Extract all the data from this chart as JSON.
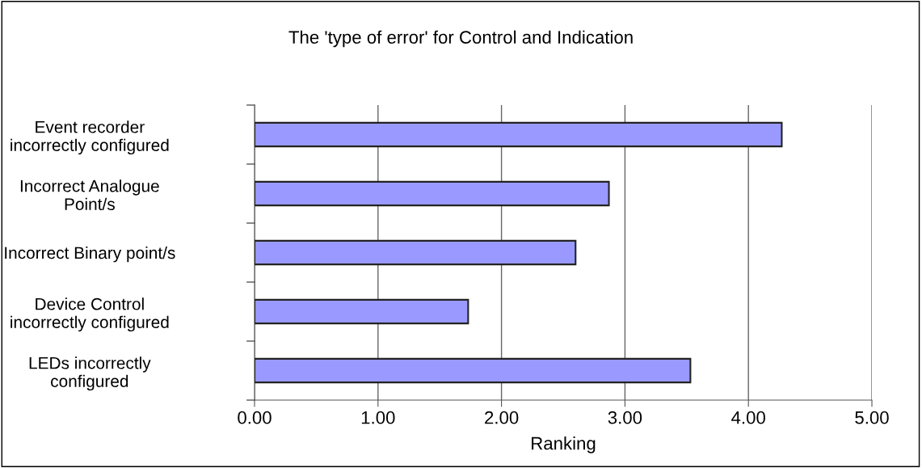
{
  "chart_data": {
    "type": "bar",
    "orientation": "horizontal",
    "title": "The 'type of error' for Control and Indication",
    "xlabel": "Ranking",
    "categories": [
      "Event recorder\nincorrectly configured",
      "Incorrect Analogue\nPoint/s",
      "Incorrect Binary point/s",
      "Device Control\nincorrectly configured",
      "LEDs incorrectly\nconfigured"
    ],
    "values": [
      4.27,
      2.87,
      2.6,
      1.73,
      3.53
    ],
    "color": "#9999ff",
    "xlim": [
      0,
      5
    ],
    "xticks": [
      {
        "value": 0,
        "label": "0.00"
      },
      {
        "value": 1,
        "label": "1.00"
      },
      {
        "value": 2,
        "label": "2.00"
      },
      {
        "value": 3,
        "label": "3.00"
      },
      {
        "value": 4,
        "label": "4.00"
      },
      {
        "value": 5,
        "label": "5.00"
      }
    ],
    "grid": "x"
  }
}
